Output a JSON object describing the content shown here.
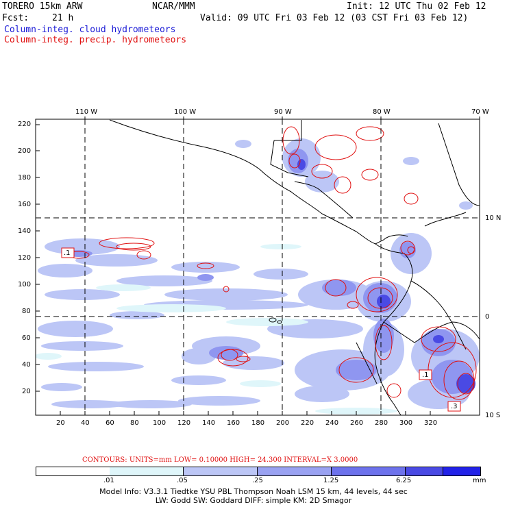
{
  "header": {
    "model": "TORERO  15km ARW",
    "center": "NCAR/MMM",
    "init": "Init: 12 UTC Thu 02 Feb 12",
    "fcst_label": "Fcst:",
    "fcst_value": "21 h",
    "valid": "Valid: 09 UTC Fri 03 Feb 12 (03 CST Fri 03 Feb 12)",
    "field1": "Column-integ. cloud hydrometeors",
    "field2": "Column-integ. precip. hydrometeors"
  },
  "map": {
    "top_lon_labels": [
      "110 W",
      "100 W",
      "90 W",
      "80 W",
      "70 W"
    ],
    "right_lat_labels": [
      "10 N",
      "0",
      "10 S"
    ],
    "y_ticks": [
      "220",
      "200",
      "180",
      "160",
      "140",
      "120",
      "100",
      "80",
      "60",
      "40",
      "20"
    ],
    "x_ticks": [
      "20",
      "40",
      "60",
      "80",
      "100",
      "120",
      "140",
      "160",
      "180",
      "200",
      "220",
      "240",
      "260",
      "280",
      "300",
      "320"
    ],
    "contour_labels": [
      ".1",
      ".1",
      ".3"
    ]
  },
  "contours_info": "CONTOURS:  UNITS=mm  LOW= 0.10000       HIGH=  24.300      INTERVAL=X  3.0000",
  "colorbar": {
    "colors": [
      "#ffffff",
      "#dff6fa",
      "#bcc6f6",
      "#9aa2f2",
      "#6d72ec",
      "#4a4ae4",
      "#2222e8"
    ],
    "labels": [
      ".01",
      ".05",
      ".25",
      "1.25",
      "6.25"
    ],
    "units": "mm"
  },
  "footer": {
    "line1": "Model Info: V3.3.1   Tiedtke YSU PBL  Thompson     Noah LSM  15 km,   44 levels,   44 sec",
    "line2": "LW: Godd SW: Goddard DIFF: simple KM: 2D Smagor"
  }
}
